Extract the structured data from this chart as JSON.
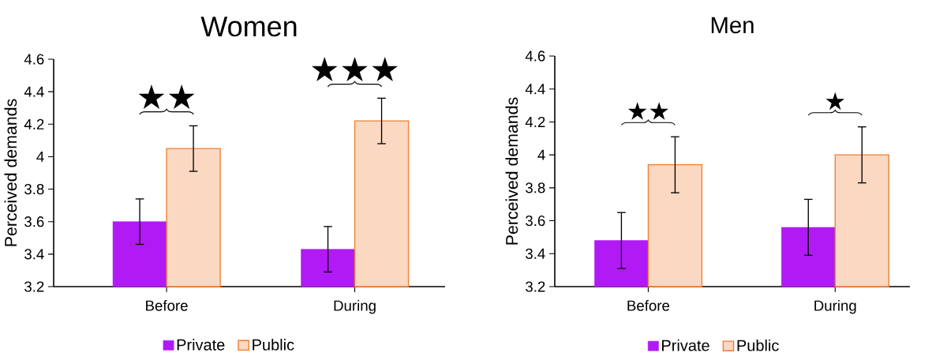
{
  "chart_data": [
    {
      "type": "bar",
      "title": "Women",
      "ylabel": "Perceived demands",
      "categories": [
        "Before",
        "During"
      ],
      "series": [
        {
          "name": "Private",
          "color": "#b11af5",
          "values": [
            3.6,
            3.43
          ],
          "errors": [
            0.14,
            0.14
          ]
        },
        {
          "name": "Public",
          "color": "#ed7d31",
          "values": [
            4.05,
            4.22
          ],
          "errors": [
            0.14,
            0.14
          ]
        }
      ],
      "ylim": [
        3.2,
        4.6
      ],
      "yticks": [
        3.2,
        3.4,
        3.6,
        3.8,
        4,
        4.2,
        4.4,
        4.6
      ],
      "grid": false,
      "legend": "bottom",
      "annotations": [
        "★★",
        "★★★"
      ]
    },
    {
      "type": "bar",
      "title": "Men",
      "ylabel": "Perceived demands",
      "categories": [
        "Before",
        "During"
      ],
      "series": [
        {
          "name": "Private",
          "color": "#b11af5",
          "values": [
            3.48,
            3.56
          ],
          "errors": [
            0.17,
            0.17
          ]
        },
        {
          "name": "Public",
          "color": "#ed7d31",
          "values": [
            3.94,
            4.0
          ],
          "errors": [
            0.17,
            0.17
          ]
        }
      ],
      "ylim": [
        3.2,
        4.6
      ],
      "yticks": [
        3.2,
        3.4,
        3.6,
        3.8,
        4,
        4.2,
        4.4,
        4.6
      ],
      "grid": false,
      "legend": "bottom",
      "annotations": [
        "★★",
        "★"
      ]
    }
  ]
}
